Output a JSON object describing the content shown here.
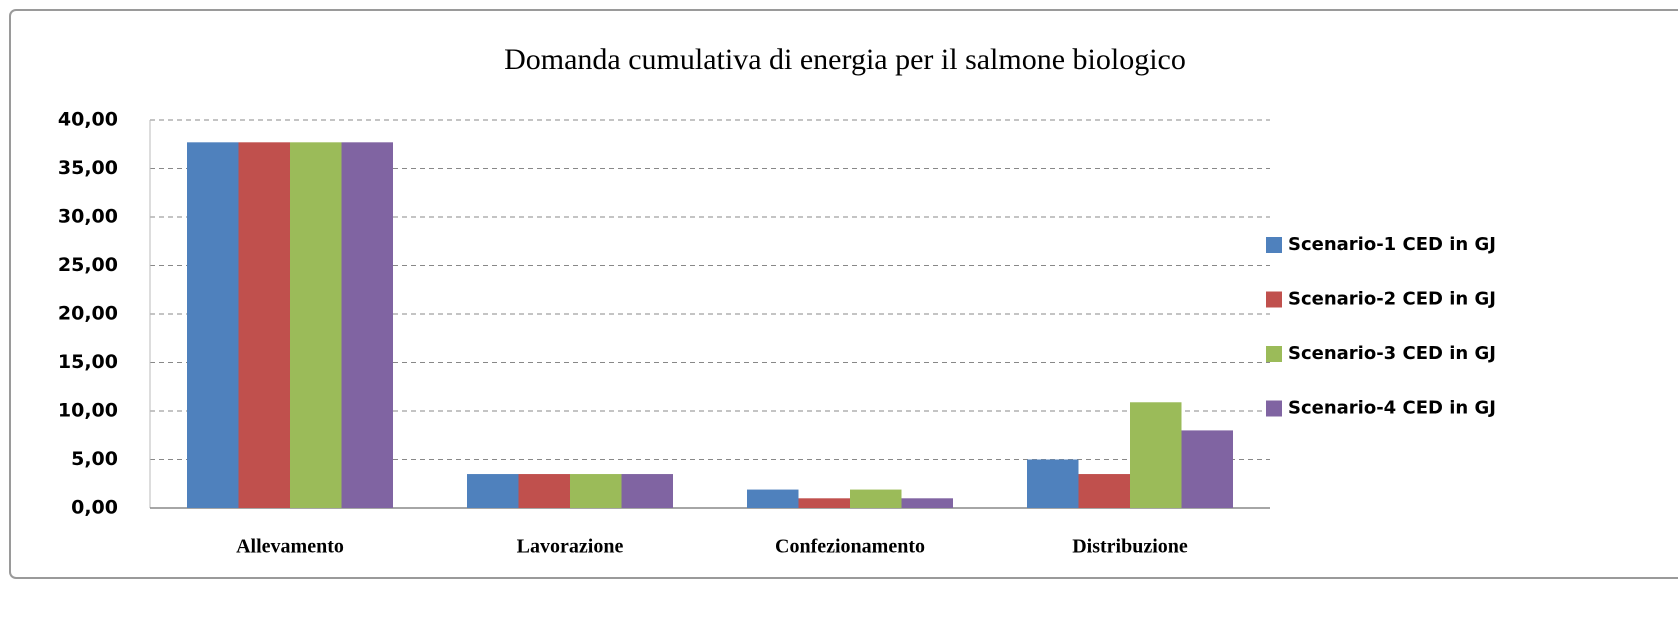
{
  "chart_data": {
    "type": "bar",
    "title": "Domanda cumulativa di energia per il salmone biologico",
    "categories": [
      "Allevamento",
      "Lavorazione",
      "Confezionamento",
      "Distribuzione"
    ],
    "series": [
      {
        "name": "Scenario-1 CED in GJ",
        "color": "#4f81bd",
        "values": [
          37.7,
          3.5,
          1.9,
          5.0
        ]
      },
      {
        "name": "Scenario-2 CED in GJ",
        "color": "#c0504d",
        "values": [
          37.7,
          3.5,
          1.0,
          3.5
        ]
      },
      {
        "name": "Scenario-3 CED in GJ",
        "color": "#9bbb59",
        "values": [
          37.7,
          3.5,
          1.9,
          10.9
        ]
      },
      {
        "name": "Scenario-4 CED in GJ",
        "color": "#8064a2",
        "values": [
          37.7,
          3.5,
          1.0,
          8.0
        ]
      }
    ],
    "ylim": [
      0,
      40
    ],
    "yticks": [
      {
        "value": 0,
        "label": "0,00"
      },
      {
        "value": 5,
        "label": "5,00"
      },
      {
        "value": 10,
        "label": "10,00"
      },
      {
        "value": 15,
        "label": "15,00"
      },
      {
        "value": 20,
        "label": "20,00"
      },
      {
        "value": 25,
        "label": "25,00"
      },
      {
        "value": 30,
        "label": "30,00"
      },
      {
        "value": 35,
        "label": "35,00"
      },
      {
        "value": 40,
        "label": "40,00"
      }
    ],
    "grid": true,
    "legend": "right"
  }
}
